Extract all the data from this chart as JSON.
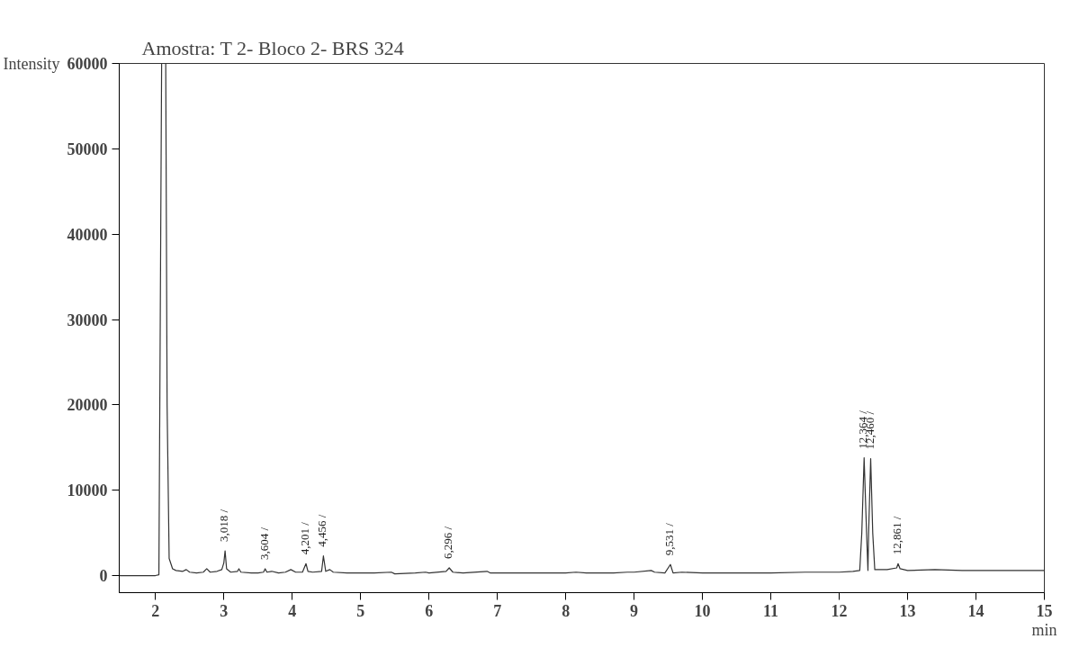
{
  "chart_data": {
    "type": "line",
    "title": "Amostra: T 2- Bloco 2- BRS 324",
    "xlabel": "min",
    "ylabel": "Intensity",
    "x": [
      1.47,
      2.0,
      2.05,
      2.07,
      2.09,
      2.15,
      2.17,
      2.2,
      2.25,
      2.3,
      2.4,
      2.45,
      2.5,
      2.6,
      2.7,
      2.75,
      2.8,
      2.9,
      2.97,
      3.0,
      3.018,
      3.04,
      3.1,
      3.2,
      3.22,
      3.25,
      3.4,
      3.5,
      3.58,
      3.604,
      3.63,
      3.7,
      3.8,
      3.9,
      3.98,
      4.05,
      4.15,
      4.201,
      4.23,
      4.3,
      4.43,
      4.456,
      4.49,
      4.55,
      4.6,
      4.8,
      5.0,
      5.2,
      5.45,
      5.5,
      5.8,
      5.95,
      6.0,
      6.25,
      6.296,
      6.35,
      6.5,
      6.85,
      6.9,
      7.2,
      7.5,
      7.8,
      8.0,
      8.15,
      8.3,
      8.7,
      8.9,
      9.0,
      9.25,
      9.3,
      9.45,
      9.531,
      9.57,
      9.7,
      10.0,
      10.5,
      11.0,
      11.5,
      12.0,
      12.2,
      12.3,
      12.33,
      12.364,
      12.4,
      12.42,
      12.43,
      12.46,
      12.49,
      12.52,
      12.7,
      12.84,
      12.861,
      12.89,
      13.0,
      13.4,
      13.8,
      14.2,
      14.6,
      15.0
    ],
    "series": [
      {
        "color": "#333333",
        "values": [
          0,
          0,
          100,
          30000,
          60000,
          60000,
          20000,
          2000,
          800,
          600,
          500,
          700,
          400,
          300,
          400,
          800,
          400,
          500,
          700,
          1500,
          2900,
          800,
          400,
          500,
          800,
          400,
          300,
          300,
          400,
          800,
          400,
          500,
          300,
          400,
          700,
          400,
          400,
          1400,
          500,
          400,
          500,
          2300,
          500,
          700,
          400,
          300,
          300,
          300,
          400,
          200,
          300,
          400,
          300,
          500,
          900,
          400,
          300,
          500,
          300,
          300,
          300,
          300,
          300,
          400,
          300,
          300,
          400,
          400,
          600,
          400,
          300,
          1300,
          300,
          400,
          300,
          300,
          300,
          400,
          400,
          500,
          600,
          5000,
          13800,
          5000,
          600,
          5000,
          13700,
          5000,
          700,
          700,
          900,
          1400,
          800,
          600,
          700,
          600,
          600,
          600,
          600
        ]
      }
    ],
    "xlim": [
      1.47,
      15
    ],
    "ylim": [
      -2000,
      60000
    ],
    "xticks": [
      2,
      3,
      4,
      5,
      6,
      7,
      8,
      9,
      10,
      11,
      12,
      13,
      14,
      15
    ],
    "yticks": [
      0,
      10000,
      20000,
      30000,
      40000,
      50000,
      60000
    ],
    "grid": false,
    "marker": "none",
    "line_style": "solid",
    "annotations": [
      {
        "text": "3,018 /",
        "x": 3.018,
        "y": 2900
      },
      {
        "text": "3,604 /",
        "x": 3.604,
        "y": 800
      },
      {
        "text": "4,201 /",
        "x": 4.201,
        "y": 1400
      },
      {
        "text": "4,456 /",
        "x": 4.456,
        "y": 2300
      },
      {
        "text": "6,296 /",
        "x": 6.296,
        "y": 900
      },
      {
        "text": "9,531 /",
        "x": 9.531,
        "y": 1300
      },
      {
        "text": "12,364 /",
        "x": 12.364,
        "y": 13800
      },
      {
        "text": "12,460 /",
        "x": 12.46,
        "y": 13700
      },
      {
        "text": "12,861 /",
        "x": 12.861,
        "y": 1400
      }
    ]
  }
}
